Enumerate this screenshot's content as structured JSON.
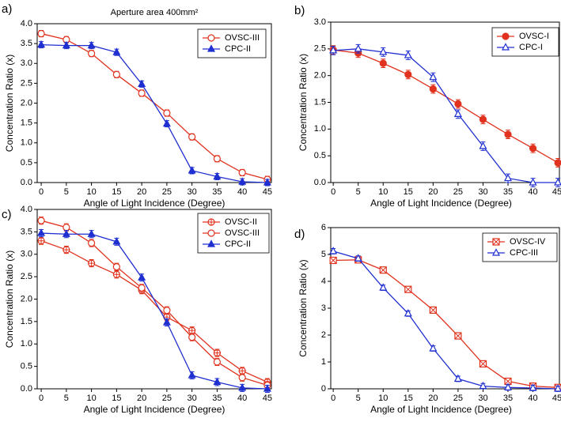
{
  "chart_data": [
    {
      "type": "line",
      "panel_label": "a)",
      "annotation": "Aperture area 400mm²",
      "x_label": "Angle of Light Incidence (Degree)",
      "y_label": "Concentration Ratio (x)",
      "x": [
        0,
        5,
        10,
        15,
        20,
        25,
        30,
        35,
        40,
        45
      ],
      "xlim": [
        -0.8,
        45.8
      ],
      "xticks": [
        0,
        5,
        10,
        15,
        20,
        25,
        30,
        35,
        40,
        45
      ],
      "ylim": [
        0,
        4
      ],
      "yticks": [
        {
          "value": 0,
          "label": "0.0"
        },
        {
          "value": 0.5,
          "label": "0.5"
        },
        {
          "value": 1,
          "label": "1.0"
        },
        {
          "value": 1.5,
          "label": "1.5"
        },
        {
          "value": 2,
          "label": "2.0"
        },
        {
          "value": 2.5,
          "label": "2.5"
        },
        {
          "value": 3,
          "label": "3.0"
        },
        {
          "value": 3.5,
          "label": "3.5"
        },
        {
          "value": 4,
          "label": "4.0"
        }
      ],
      "legend": "upper right",
      "series": [
        {
          "name": "OVSC-III",
          "color": "#e0321e",
          "marker": "circle-open",
          "error": 0.08,
          "values": [
            3.75,
            3.6,
            3.25,
            2.72,
            2.25,
            1.75,
            1.15,
            0.6,
            0.25,
            0.08
          ]
        },
        {
          "name": "CPC-II",
          "color": "#1f2fd0",
          "marker": "triangle-filled",
          "error": 0.08,
          "values": [
            3.47,
            3.45,
            3.45,
            3.28,
            2.48,
            1.48,
            0.3,
            0.15,
            0.02,
            0.0
          ]
        }
      ]
    },
    {
      "type": "line",
      "panel_label": "b)",
      "x_label": "Angle of Light Incidence (Degree)",
      "y_label": "Concentration Ratio (x)",
      "x": [
        0,
        5,
        10,
        15,
        20,
        25,
        30,
        35,
        40,
        45
      ],
      "xlim": [
        -0.5,
        45.3
      ],
      "xticks": [
        0,
        5,
        10,
        15,
        20,
        25,
        30,
        35,
        40,
        45
      ],
      "ylim": [
        0,
        3
      ],
      "yticks": [
        {
          "value": 0,
          "label": "0.0"
        },
        {
          "value": 0.5,
          "label": "0.5"
        },
        {
          "value": 1,
          "label": "1.0"
        },
        {
          "value": 1.5,
          "label": "1.5"
        },
        {
          "value": 2,
          "label": "2.0"
        },
        {
          "value": 2.5,
          "label": "2.5"
        },
        {
          "value": 3,
          "label": "3.0"
        }
      ],
      "legend": "upper right",
      "series": [
        {
          "name": "OVSC-I",
          "color": "#e0321e",
          "marker": "circle-filled",
          "error": 0.08,
          "values": [
            2.48,
            2.42,
            2.23,
            2.02,
            1.75,
            1.47,
            1.18,
            0.9,
            0.64,
            0.37
          ]
        },
        {
          "name": "CPC-I",
          "color": "#1f2fd0",
          "marker": "triangle-open",
          "error": 0.08,
          "values": [
            2.47,
            2.5,
            2.44,
            2.38,
            1.97,
            1.28,
            0.68,
            0.08,
            0.0,
            0.0
          ]
        }
      ]
    },
    {
      "type": "line",
      "panel_label": "c)",
      "x_label": "Angle of Light Incidence (Degree)",
      "y_label": "Concentration Ratio (x)",
      "x": [
        0,
        5,
        10,
        15,
        20,
        25,
        30,
        35,
        40,
        45
      ],
      "xlim": [
        -0.8,
        45.8
      ],
      "xticks": [
        0,
        5,
        10,
        15,
        20,
        25,
        30,
        35,
        40,
        45
      ],
      "ylim": [
        0,
        4
      ],
      "yticks": [
        {
          "value": 0,
          "label": "0.0"
        },
        {
          "value": 0.5,
          "label": "0.5"
        },
        {
          "value": 1,
          "label": "1.0"
        },
        {
          "value": 1.5,
          "label": "1.5"
        },
        {
          "value": 2,
          "label": "2.0"
        },
        {
          "value": 2.5,
          "label": "2.5"
        },
        {
          "value": 3,
          "label": "3.0"
        },
        {
          "value": 3.5,
          "label": "3.5"
        },
        {
          "value": 4,
          "label": "4.0"
        }
      ],
      "legend": "upper right",
      "series": [
        {
          "name": "OVSC-II",
          "color": "#e0321e",
          "marker": "circle-cross",
          "error": 0.08,
          "values": [
            3.3,
            3.1,
            2.8,
            2.55,
            2.2,
            1.6,
            1.3,
            0.8,
            0.4,
            0.15
          ]
        },
        {
          "name": "OVSC-III",
          "color": "#e0321e",
          "marker": "circle-open",
          "error": 0.08,
          "values": [
            3.75,
            3.6,
            3.25,
            2.72,
            2.25,
            1.75,
            1.15,
            0.6,
            0.25,
            0.08
          ]
        },
        {
          "name": "CPC-II",
          "color": "#1f2fd0",
          "marker": "triangle-filled",
          "error": 0.08,
          "values": [
            3.47,
            3.45,
            3.45,
            3.28,
            2.48,
            1.48,
            0.3,
            0.15,
            0.02,
            0.0
          ]
        }
      ]
    },
    {
      "type": "line",
      "panel_label": "d)",
      "x_label": "Angle of Light Incidence (Degree)",
      "y_label": "Concentration Ratio (x)",
      "x": [
        0,
        5,
        10,
        15,
        20,
        25,
        30,
        35,
        40,
        45
      ],
      "xlim": [
        -0.5,
        45.3
      ],
      "xticks": [
        0,
        5,
        10,
        15,
        20,
        25,
        30,
        35,
        40,
        45
      ],
      "ylim": [
        0,
        6
      ],
      "yticks": [
        0,
        1,
        2,
        3,
        4,
        5,
        6
      ],
      "legend": "upper right",
      "series": [
        {
          "name": "OVSC-IV",
          "color": "#e0321e",
          "marker": "square-x",
          "error": 0.1,
          "values": [
            4.78,
            4.8,
            4.42,
            3.7,
            2.93,
            1.97,
            0.93,
            0.28,
            0.1,
            0.05
          ]
        },
        {
          "name": "CPC-III",
          "color": "#1f2fd0",
          "marker": "triangle-open",
          "error": 0.1,
          "values": [
            5.12,
            4.85,
            3.76,
            2.8,
            1.5,
            0.37,
            0.1,
            0.05,
            0.03,
            0.0
          ]
        }
      ]
    }
  ]
}
